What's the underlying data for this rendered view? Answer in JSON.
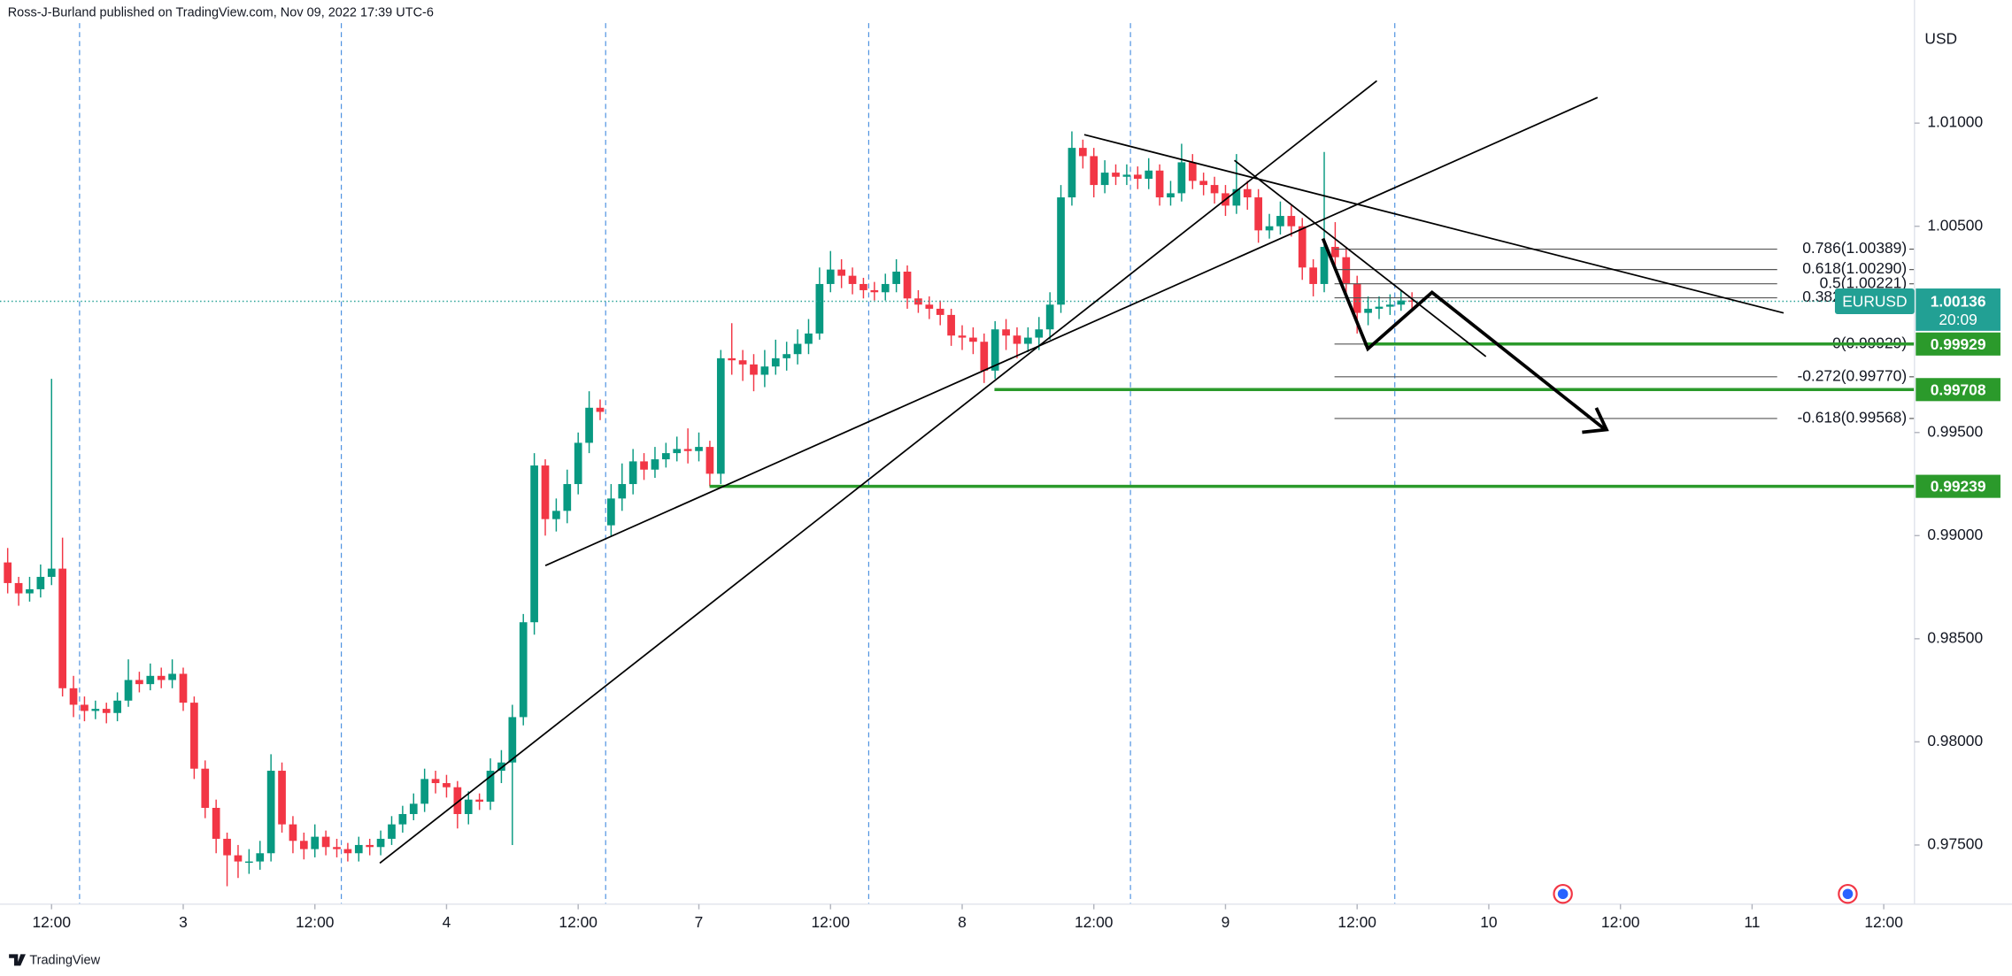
{
  "chart_data": {
    "type": "candlestick",
    "header": "Ross-J-Burland published on TradingView.com, Nov 09, 2022 17:39 UTC-6",
    "currency": "USD",
    "symbol": "EURUSD",
    "countdown": "20:09",
    "last_price": 1.00136,
    "brand": "TradingView",
    "colors": {
      "up": "#089981",
      "down": "#f23645",
      "level": "#2b9a2b",
      "tag": "#22a094"
    },
    "ylim": [
      0.97213,
      1.01597
    ],
    "yticks": [
      {
        "value": 1.01,
        "label": "1.01000"
      },
      {
        "value": 1.005,
        "label": "1.00500"
      },
      {
        "value": 0.995,
        "label": "0.99500"
      },
      {
        "value": 0.99,
        "label": "0.99000"
      },
      {
        "value": 0.985,
        "label": "0.98500"
      },
      {
        "value": 0.98,
        "label": "0.98000"
      },
      {
        "value": 0.975,
        "label": "0.97500"
      }
    ],
    "xlim": [
      -0.7,
      173.8
    ],
    "xticks": [
      {
        "value": 4,
        "label": "12:00"
      },
      {
        "value": 16,
        "label": "3"
      },
      {
        "value": 28,
        "label": "12:00"
      },
      {
        "value": 40,
        "label": "4"
      },
      {
        "value": 52,
        "label": "12:00"
      },
      {
        "value": 63,
        "label": "7"
      },
      {
        "value": 75,
        "label": "12:00"
      },
      {
        "value": 87,
        "label": "8"
      },
      {
        "value": 99,
        "label": "12:00"
      },
      {
        "value": 111,
        "label": "9"
      },
      {
        "value": 123,
        "label": "12:00"
      },
      {
        "value": 135,
        "label": "10"
      },
      {
        "value": 147,
        "label": "12:00"
      },
      {
        "value": 159,
        "label": "11"
      },
      {
        "value": 171,
        "label": "12:00"
      }
    ],
    "levels": [
      0.99929,
      0.99708,
      0.99239
    ],
    "fibonacci": [
      {
        "value": 1.00389,
        "label": "0.786(1.00389)"
      },
      {
        "value": 1.0029,
        "label": "0.618(1.00290)"
      },
      {
        "value": 1.00221,
        "label": "0.5(1.00221)"
      },
      {
        "value": 1.00153,
        "label": "0.382(1.00153)"
      },
      {
        "value": 0.99929,
        "label": "0(0.99929)"
      },
      {
        "value": 0.9977,
        "label": "-0.272(0.99770)"
      },
      {
        "value": 0.99568,
        "label": "-0.618(0.99568)"
      }
    ],
    "ohlc": [
      [
        0.9887,
        0.9894,
        0.9872,
        0.9877
      ],
      [
        0.9877,
        0.988,
        0.9866,
        0.9872
      ],
      [
        0.9872,
        0.988,
        0.9868,
        0.9874
      ],
      [
        0.9874,
        0.9886,
        0.987,
        0.988
      ],
      [
        0.988,
        0.9976,
        0.9876,
        0.9884
      ],
      [
        0.9884,
        0.9899,
        0.9822,
        0.9826
      ],
      [
        0.9826,
        0.9832,
        0.9812,
        0.9818
      ],
      [
        0.9818,
        0.9822,
        0.981,
        0.9815
      ],
      [
        0.9815,
        0.982,
        0.9811,
        0.9816
      ],
      [
        0.9816,
        0.9819,
        0.9809,
        0.9814
      ],
      [
        0.9814,
        0.9824,
        0.981,
        0.982
      ],
      [
        0.982,
        0.984,
        0.9817,
        0.983
      ],
      [
        0.983,
        0.9834,
        0.9824,
        0.9828
      ],
      [
        0.9828,
        0.9838,
        0.9825,
        0.9832
      ],
      [
        0.9832,
        0.9836,
        0.9826,
        0.983
      ],
      [
        0.983,
        0.984,
        0.9826,
        0.9833
      ],
      [
        0.9833,
        0.9836,
        0.9815,
        0.9819
      ],
      [
        0.9819,
        0.9822,
        0.9782,
        0.9787
      ],
      [
        0.9787,
        0.9791,
        0.9763,
        0.9768
      ],
      [
        0.9768,
        0.9772,
        0.9746,
        0.9753
      ],
      [
        0.9753,
        0.9756,
        0.973,
        0.9745
      ],
      [
        0.9745,
        0.975,
        0.9734,
        0.9742
      ],
      [
        0.9742,
        0.9748,
        0.9736,
        0.9742
      ],
      [
        0.9742,
        0.9752,
        0.9738,
        0.9746
      ],
      [
        0.9746,
        0.9794,
        0.9742,
        0.9786
      ],
      [
        0.9786,
        0.979,
        0.9756,
        0.976
      ],
      [
        0.976,
        0.9764,
        0.9746,
        0.9752
      ],
      [
        0.9752,
        0.9756,
        0.9743,
        0.9748
      ],
      [
        0.9748,
        0.976,
        0.9744,
        0.9754
      ],
      [
        0.9754,
        0.9757,
        0.9745,
        0.9749
      ],
      [
        0.9749,
        0.9753,
        0.9744,
        0.9748
      ],
      [
        0.9748,
        0.9751,
        0.9742,
        0.9746
      ],
      [
        0.9746,
        0.9754,
        0.9742,
        0.975
      ],
      [
        0.975,
        0.9753,
        0.9745,
        0.9749
      ],
      [
        0.9749,
        0.9757,
        0.9745,
        0.9753
      ],
      [
        0.9753,
        0.9764,
        0.975,
        0.976
      ],
      [
        0.976,
        0.9769,
        0.9756,
        0.9765
      ],
      [
        0.9765,
        0.9775,
        0.9762,
        0.977
      ],
      [
        0.977,
        0.9787,
        0.9766,
        0.9782
      ],
      [
        0.9782,
        0.9786,
        0.9775,
        0.978
      ],
      [
        0.978,
        0.9784,
        0.9773,
        0.9778
      ],
      [
        0.9778,
        0.9781,
        0.9758,
        0.9765
      ],
      [
        0.9765,
        0.9776,
        0.976,
        0.9772
      ],
      [
        0.9772,
        0.9775,
        0.9767,
        0.9771
      ],
      [
        0.9771,
        0.9792,
        0.9767,
        0.9786
      ],
      [
        0.9786,
        0.9796,
        0.978,
        0.979
      ],
      [
        0.979,
        0.9818,
        0.975,
        0.9812
      ],
      [
        0.9812,
        0.9862,
        0.9808,
        0.9858
      ],
      [
        0.9858,
        0.994,
        0.9852,
        0.9934
      ],
      [
        0.9934,
        0.9937,
        0.99,
        0.9908
      ],
      [
        0.9908,
        0.9918,
        0.9902,
        0.9912
      ],
      [
        0.9912,
        0.9932,
        0.9906,
        0.9925
      ],
      [
        0.9925,
        0.995,
        0.992,
        0.9945
      ],
      [
        0.9945,
        0.997,
        0.994,
        0.9962
      ],
      [
        0.9962,
        0.9966,
        0.9956,
        0.996
      ],
      [
        0.9905,
        0.9925,
        0.99,
        0.9918
      ],
      [
        0.9918,
        0.9935,
        0.9912,
        0.9925
      ],
      [
        0.9925,
        0.9942,
        0.992,
        0.9936
      ],
      [
        0.9936,
        0.994,
        0.9927,
        0.9932
      ],
      [
        0.9932,
        0.9943,
        0.9928,
        0.9937
      ],
      [
        0.9937,
        0.9945,
        0.9933,
        0.994
      ],
      [
        0.994,
        0.9948,
        0.9936,
        0.9942
      ],
      [
        0.9942,
        0.9952,
        0.9935,
        0.9941
      ],
      [
        0.9941,
        0.995,
        0.9936,
        0.9943
      ],
      [
        0.9943,
        0.9946,
        0.9924,
        0.993
      ],
      [
        0.993,
        0.999,
        0.9925,
        0.9986
      ],
      [
        0.9986,
        1.0003,
        0.9978,
        0.9985
      ],
      [
        0.9985,
        0.999,
        0.9975,
        0.9983
      ],
      [
        0.9983,
        0.9988,
        0.997,
        0.9978
      ],
      [
        0.9978,
        0.999,
        0.9972,
        0.9982
      ],
      [
        0.9982,
        0.9995,
        0.9978,
        0.9986
      ],
      [
        0.9986,
        0.9994,
        0.998,
        0.9988
      ],
      [
        0.9988,
        1.0,
        0.9983,
        0.9993
      ],
      [
        0.9993,
        1.0005,
        0.9988,
        0.9998
      ],
      [
        0.9998,
        1.003,
        0.9995,
        1.0022
      ],
      [
        1.0022,
        1.0038,
        1.0018,
        1.0029
      ],
      [
        1.0029,
        1.0034,
        1.002,
        1.0026
      ],
      [
        1.0026,
        1.003,
        1.0017,
        1.0022
      ],
      [
        1.0022,
        1.0025,
        1.0015,
        1.0019
      ],
      [
        1.0019,
        1.0023,
        1.0014,
        1.0018
      ],
      [
        1.0018,
        1.0027,
        1.0014,
        1.0022
      ],
      [
        1.0022,
        1.0034,
        1.0018,
        1.0028
      ],
      [
        1.0028,
        1.0031,
        1.001,
        1.0015
      ],
      [
        1.0015,
        1.0019,
        1.0008,
        1.0012
      ],
      [
        1.0012,
        1.0016,
        1.0005,
        1.001
      ],
      [
        1.001,
        1.0014,
        1.0002,
        1.0007
      ],
      [
        1.0007,
        1.001,
        0.9992,
        0.9997
      ],
      [
        0.9997,
        1.0002,
        0.999,
        0.9996
      ],
      [
        0.9996,
        1.0001,
        0.9988,
        0.9994
      ],
      [
        0.9994,
        0.9998,
        0.9974,
        0.998
      ],
      [
        0.998,
        1.0004,
        0.9976,
        1.0
      ],
      [
        1.0,
        1.0005,
        0.999,
        0.9997
      ],
      [
        0.9997,
        1.0001,
        0.9986,
        0.9993
      ],
      [
        0.9993,
        1.0001,
        0.9989,
        0.9996
      ],
      [
        0.9996,
        1.0006,
        0.999,
        1.0
      ],
      [
        1.0,
        1.0018,
        0.9995,
        1.0012
      ],
      [
        1.0012,
        1.007,
        1.0008,
        1.0064
      ],
      [
        1.0064,
        1.0096,
        1.006,
        1.0088
      ],
      [
        1.0088,
        1.0092,
        1.0078,
        1.0084
      ],
      [
        1.0084,
        1.0088,
        1.0064,
        1.007
      ],
      [
        1.007,
        1.0082,
        1.0066,
        1.0076
      ],
      [
        1.0076,
        1.008,
        1.007,
        1.0074
      ],
      [
        1.0074,
        1.008,
        1.007,
        1.0075
      ],
      [
        1.0075,
        1.0079,
        1.0068,
        1.0073
      ],
      [
        1.0073,
        1.0083,
        1.0068,
        1.0077
      ],
      [
        1.0077,
        1.008,
        1.006,
        1.0064
      ],
      [
        1.0064,
        1.0072,
        1.006,
        1.0066
      ],
      [
        1.0066,
        1.009,
        1.0062,
        1.0081
      ],
      [
        1.0081,
        1.0085,
        1.0068,
        1.0072
      ],
      [
        1.0072,
        1.0076,
        1.0065,
        1.007
      ],
      [
        1.007,
        1.0074,
        1.0061,
        1.0066
      ],
      [
        1.0066,
        1.007,
        1.0055,
        1.006
      ],
      [
        1.006,
        1.0085,
        1.0056,
        1.0068
      ],
      [
        1.0068,
        1.0072,
        1.0058,
        1.0064
      ],
      [
        1.0064,
        1.0068,
        1.0042,
        1.0048
      ],
      [
        1.0048,
        1.0056,
        1.0044,
        1.005
      ],
      [
        1.005,
        1.0062,
        1.0046,
        1.0055
      ],
      [
        1.0055,
        1.006,
        1.0045,
        1.005
      ],
      [
        1.005,
        1.0054,
        1.0024,
        1.003
      ],
      [
        1.003,
        1.0034,
        1.0016,
        1.0022
      ],
      [
        1.0022,
        1.0086,
        1.0018,
        1.004
      ],
      [
        1.004,
        1.0052,
        1.003,
        1.0035
      ],
      [
        1.0035,
        1.004,
        1.0016,
        1.0022
      ],
      [
        1.0022,
        1.0026,
        0.9998,
        1.0008
      ],
      [
        1.0008,
        1.0016,
        1.0002,
        1.001
      ],
      [
        1.001,
        1.0016,
        1.0005,
        1.0011
      ],
      [
        1.0011,
        1.0017,
        1.0007,
        1.0012
      ],
      [
        1.0012,
        1.0019,
        1.0009,
        1.0014
      ],
      [
        1.0014,
        1.0018,
        1.001,
        1.00136
      ]
    ]
  }
}
